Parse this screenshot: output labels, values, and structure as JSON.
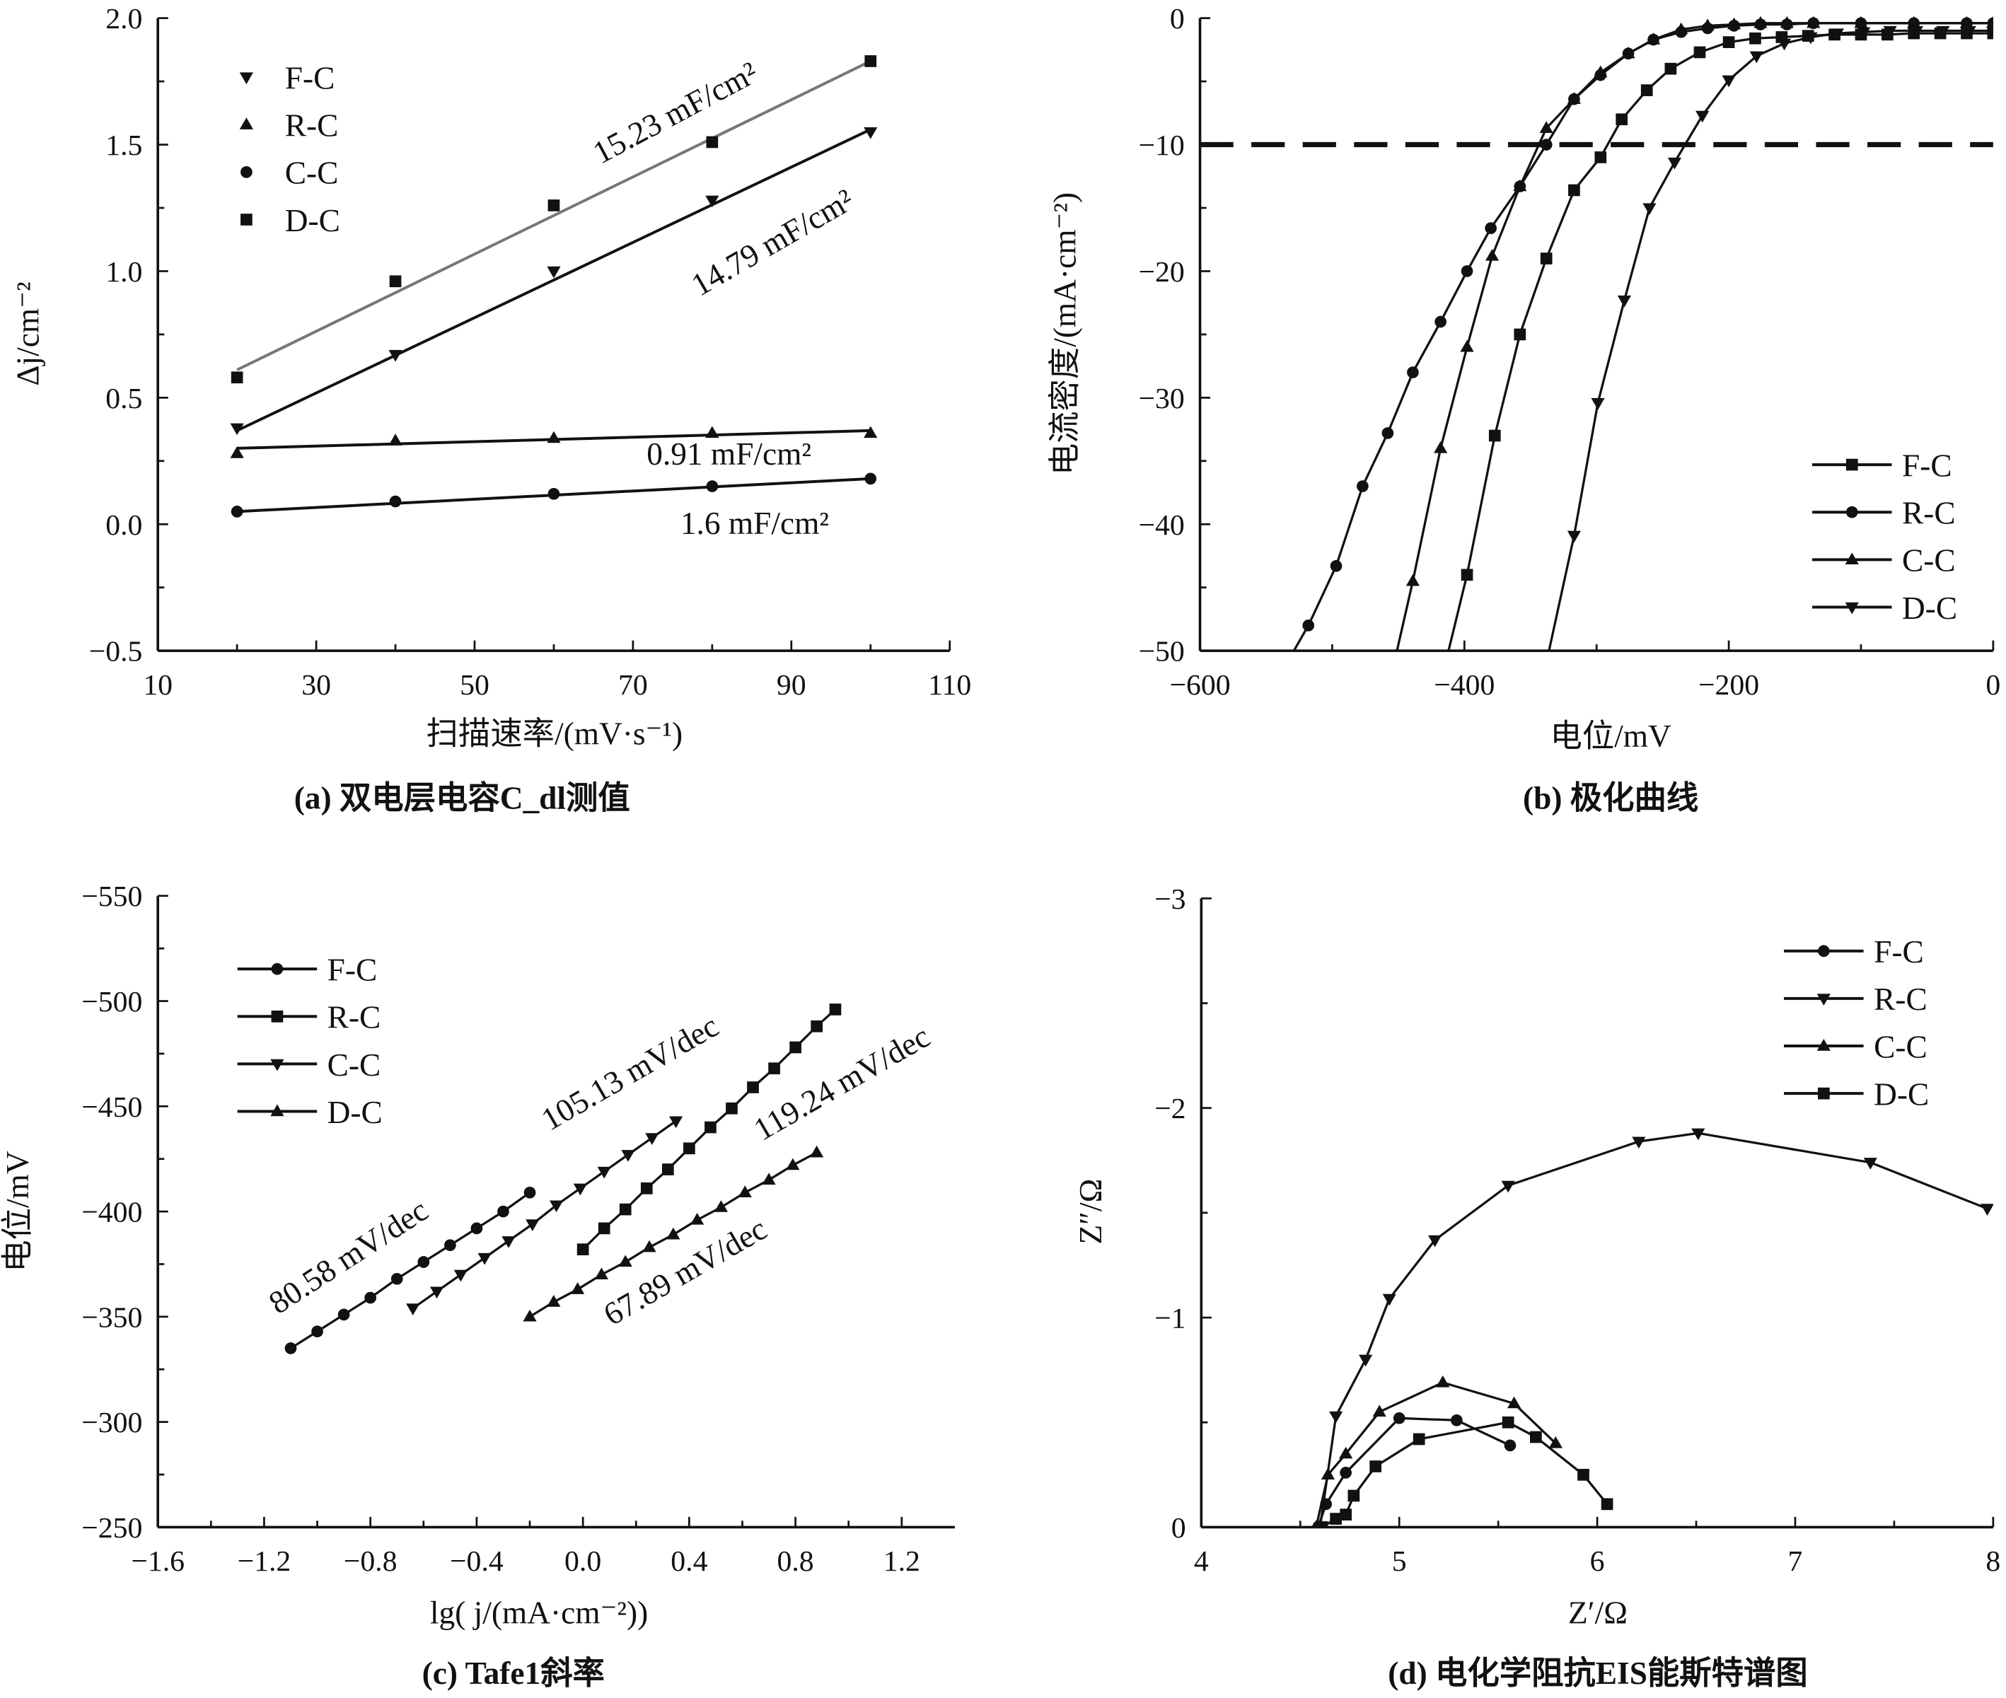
{
  "chart_data": [
    {
      "type": "scatter",
      "title": "(a) 双电层电容C_dl测值",
      "xlabel": "扫描速率/(mV·s⁻¹)",
      "ylabel": "Δj/cm⁻²",
      "xlim": [
        10,
        110
      ],
      "ylim": [
        -0.5,
        2.0
      ],
      "x_ticks": [
        10,
        30,
        50,
        70,
        90,
        110
      ],
      "x_tick_labels": [
        "10",
        "30",
        "50",
        "70",
        "90",
        "110"
      ],
      "y_ticks": [
        -0.5,
        0,
        0.5,
        1.0,
        1.5,
        2.0
      ],
      "y_tick_labels": [
        "−0.5",
        "0.0",
        "0.5",
        "1.0",
        "1.5",
        "2.0"
      ],
      "legend": "top-left",
      "series": [
        {
          "name": "F-C",
          "marker": "triangle-down",
          "color": "#111111",
          "x": [
            20,
            40,
            60,
            80,
            100
          ],
          "y": [
            0.38,
            0.67,
            1.0,
            1.28,
            1.55
          ],
          "fit": [
            [
              20,
              0.37
            ],
            [
              100,
              1.56
            ]
          ],
          "fit_color": "#111111"
        },
        {
          "name": "R-C",
          "marker": "triangle-up",
          "color": "#111111",
          "x": [
            20,
            40,
            60,
            80,
            100
          ],
          "y": [
            0.28,
            0.33,
            0.34,
            0.36,
            0.36
          ],
          "fit": [
            [
              20,
              0.3
            ],
            [
              100,
              0.37
            ]
          ],
          "fit_color": "#111111"
        },
        {
          "name": "C-C",
          "marker": "circle",
          "color": "#111111",
          "x": [
            20,
            40,
            60,
            80,
            100
          ],
          "y": [
            0.05,
            0.09,
            0.12,
            0.15,
            0.18
          ],
          "fit": [
            [
              20,
              0.05
            ],
            [
              100,
              0.18
            ]
          ],
          "fit_color": "#111111"
        },
        {
          "name": "D-C",
          "marker": "square",
          "color": "#111111",
          "x": [
            20,
            40,
            60,
            80,
            100
          ],
          "y": [
            0.58,
            0.96,
            1.26,
            1.51,
            1.83
          ],
          "fit": [
            [
              20,
              0.61
            ],
            [
              100,
              1.83
            ]
          ],
          "fit_color": "#777777"
        }
      ],
      "annotations": [
        "15.23 mF/cm²",
        "14.79 mF/cm²",
        "0.91 mF/cm²",
        "1.6 mF/cm²"
      ]
    },
    {
      "type": "line",
      "title": "(b) 极化曲线",
      "xlabel": "电位/mV",
      "ylabel": "电流密度/(mA·cm⁻²)",
      "xlim": [
        -600,
        0
      ],
      "ylim": [
        -50,
        0
      ],
      "x_ticks": [
        -600,
        -400,
        -200,
        0
      ],
      "x_tick_labels": [
        "−600",
        "−400",
        "−200",
        "0"
      ],
      "y_ticks": [
        -50,
        -40,
        -30,
        -20,
        -10,
        0
      ],
      "y_tick_labels": [
        "−50",
        "−40",
        "−30",
        "−20",
        "−10",
        "0"
      ],
      "reference_line_y": -10,
      "legend": "bottom-right",
      "series": [
        {
          "name": "F-C",
          "marker": "square",
          "color": "#111111",
          "x": [
            -412,
            -398,
            -377,
            -358,
            -338,
            -317,
            -297,
            -281,
            -262,
            -244,
            -222,
            -200,
            -180,
            -160,
            -140,
            -120,
            -100,
            -80,
            -60,
            -40,
            -20,
            0
          ],
          "y": [
            -50,
            -44,
            -33,
            -25,
            -19,
            -13.6,
            -11,
            -8,
            -5.7,
            -4,
            -2.7,
            -1.9,
            -1.6,
            -1.5,
            -1.4,
            -1.3,
            -1.3,
            -1.3,
            -1.2,
            -1.2,
            -1.2,
            -1.2
          ]
        },
        {
          "name": "R-C",
          "marker": "circle",
          "color": "#111111",
          "x": [
            -529,
            -518,
            -497,
            -477,
            -458,
            -439,
            -418,
            -398,
            -380,
            -358,
            -338,
            -317,
            -297,
            -276,
            -257,
            -236,
            -216,
            -196,
            -176,
            -156,
            -136,
            -100,
            -60,
            -20,
            0
          ],
          "y": [
            -50,
            -48,
            -43.3,
            -37,
            -32.8,
            -28,
            -24,
            -20,
            -16.6,
            -13.3,
            -10,
            -6.4,
            -4.5,
            -2.8,
            -1.7,
            -1.1,
            -0.8,
            -0.6,
            -0.5,
            -0.5,
            -0.4,
            -0.4,
            -0.4,
            -0.4,
            -0.4
          ]
        },
        {
          "name": "C-C",
          "marker": "triangle-up",
          "color": "#111111",
          "x": [
            -451,
            -439,
            -418,
            -398,
            -379,
            -358,
            -338,
            -317,
            -297,
            -276,
            -257,
            -236,
            -216,
            -196,
            -176,
            -156,
            -136,
            -100,
            -60,
            -20,
            0
          ],
          "y": [
            -50,
            -44.5,
            -34,
            -26,
            -18.8,
            -13.3,
            -8.7,
            -6.4,
            -4.3,
            -2.8,
            -1.7,
            -0.9,
            -0.6,
            -0.5,
            -0.4,
            -0.4,
            -0.4,
            -0.4,
            -0.4,
            -0.4,
            -0.4
          ]
        },
        {
          "name": "D-C",
          "marker": "triangle-down",
          "color": "#111111",
          "x": [
            -336,
            -317,
            -299,
            -279,
            -260,
            -241,
            -220,
            -200,
            -179,
            -158,
            -138,
            -118,
            -98,
            -78,
            -58,
            -38,
            -18,
            0
          ],
          "y": [
            -50,
            -40.9,
            -30.4,
            -22.3,
            -15,
            -11.4,
            -7.7,
            -4.9,
            -3,
            -2,
            -1.5,
            -1.2,
            -1.1,
            -1,
            -1,
            -1,
            -1,
            -1
          ]
        }
      ]
    },
    {
      "type": "scatter",
      "title": "(c) Tafe1斜率",
      "xlabel": "lg( j/(mA·cm⁻²))",
      "ylabel": "电位/mV",
      "xlim": [
        -1.6,
        1.4
      ],
      "ylim": [
        -250,
        -550
      ],
      "x_ticks": [
        -1.6,
        -1.2,
        -0.8,
        -0.4,
        0.0,
        0.4,
        0.8,
        1.2
      ],
      "x_tick_labels": [
        "−1.6",
        "−1.2",
        "−0.8",
        "−0.4",
        "0.0",
        "0.4",
        "0.8",
        "1.2"
      ],
      "y_ticks": [
        -250,
        -300,
        -350,
        -400,
        -450,
        -500,
        -550
      ],
      "y_tick_labels": [
        "−250",
        "−300",
        "−350",
        "−400",
        "−450",
        "−500",
        "−550"
      ],
      "legend": "top-left",
      "series": [
        {
          "name": "F-C",
          "marker": "circle",
          "color": "#111111",
          "x": [
            -1.1,
            -1.0,
            -0.9,
            -0.8,
            -0.7,
            -0.6,
            -0.5,
            -0.4,
            -0.3,
            -0.2
          ],
          "y": [
            -335,
            -343,
            -351,
            -359,
            -368,
            -376,
            -384,
            -392,
            -400,
            -409
          ]
        },
        {
          "name": "R-C",
          "marker": "square",
          "color": "#111111",
          "x": [
            0,
            0.08,
            0.16,
            0.24,
            0.32,
            0.4,
            0.48,
            0.56,
            0.64,
            0.72,
            0.8,
            0.88,
            0.95
          ],
          "y": [
            -382,
            -392,
            -401,
            -411,
            -420,
            -430,
            -440,
            -449,
            -459,
            -468,
            -478,
            -488,
            -496
          ]
        },
        {
          "name": "C-C",
          "marker": "triangle-down",
          "color": "#111111",
          "x": [
            -0.64,
            -0.55,
            -0.46,
            -0.37,
            -0.28,
            -0.19,
            -0.1,
            -0.01,
            0.08,
            0.17,
            0.26,
            0.35
          ],
          "y": [
            -354,
            -362,
            -370,
            -378,
            -386,
            -394,
            -403,
            -411,
            -419,
            -427,
            -435,
            -443
          ]
        },
        {
          "name": "D-C",
          "marker": "triangle-up",
          "color": "#111111",
          "x": [
            -0.2,
            -0.11,
            -0.02,
            0.07,
            0.16,
            0.25,
            0.34,
            0.43,
            0.52,
            0.61,
            0.7,
            0.79,
            0.88
          ],
          "y": [
            -350,
            -357,
            -363,
            -370,
            -376,
            -383,
            -389,
            -396,
            -402,
            -409,
            -415,
            -422,
            -428
          ]
        }
      ],
      "annotations": [
        "80.58 mV/dec",
        "105.13 mV/dec",
        "119.24 mV/dec",
        "67.89 mV/dec"
      ]
    },
    {
      "type": "line",
      "title": "(d) 电化学阻抗EIS能斯特谱图",
      "xlabel": "Z′/Ω",
      "ylabel": "Z″/Ω",
      "xlim": [
        4,
        8
      ],
      "ylim": [
        0,
        -3
      ],
      "x_ticks": [
        4,
        5,
        6,
        7,
        8
      ],
      "x_tick_labels": [
        "4",
        "5",
        "6",
        "7",
        "8"
      ],
      "y_ticks": [
        0,
        -1,
        -2,
        -3
      ],
      "y_tick_labels": [
        "0",
        "−1",
        "−2",
        "−3"
      ],
      "legend": "top-right",
      "series": [
        {
          "name": "F-C",
          "marker": "circle",
          "color": "#111111",
          "x": [
            4.59,
            4.63,
            4.73,
            5.0,
            5.29,
            5.56
          ],
          "y": [
            0,
            -0.11,
            -0.26,
            -0.52,
            -0.51,
            -0.39
          ]
        },
        {
          "name": "R-C",
          "marker": "triangle-down",
          "color": "#111111",
          "x": [
            4.6,
            4.68,
            4.83,
            4.95,
            5.18,
            5.55,
            6.21,
            6.51,
            7.38,
            7.97
          ],
          "y": [
            0,
            -0.53,
            -0.8,
            -1.09,
            -1.37,
            -1.63,
            -1.84,
            -1.88,
            -1.74,
            -1.52
          ]
        },
        {
          "name": "C-C",
          "marker": "triangle-up",
          "color": "#111111",
          "x": [
            4.58,
            4.64,
            4.73,
            4.9,
            5.22,
            5.58,
            5.79
          ],
          "y": [
            0,
            -0.25,
            -0.35,
            -0.55,
            -0.69,
            -0.59,
            -0.4
          ]
        },
        {
          "name": "D-C",
          "marker": "square",
          "color": "#111111",
          "x": [
            4.61,
            4.68,
            4.73,
            4.77,
            4.88,
            5.1,
            5.55,
            5.69,
            5.93,
            6.05
          ],
          "y": [
            0,
            -0.04,
            -0.06,
            -0.15,
            -0.29,
            -0.42,
            -0.5,
            -0.43,
            -0.25,
            -0.11
          ]
        }
      ]
    }
  ]
}
